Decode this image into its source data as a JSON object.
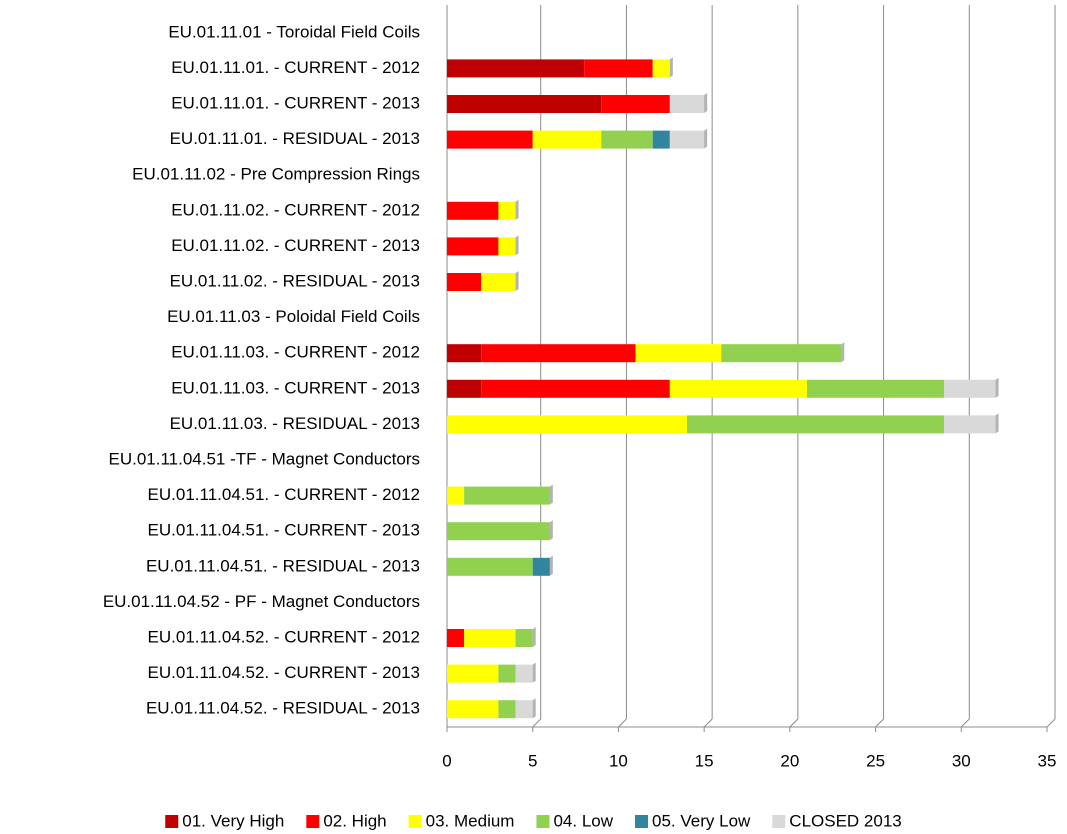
{
  "chart_data": {
    "type": "stacked-barh",
    "categories": [
      "EU.01.11.01 - Toroidal Field Coils",
      "EU.01.11.01. - CURRENT - 2012",
      "EU.01.11.01. - CURRENT - 2013",
      "EU.01.11.01. - RESIDUAL - 2013",
      "EU.01.11.02 - Pre Compression Rings",
      "EU.01.11.02. - CURRENT - 2012",
      "EU.01.11.02. - CURRENT - 2013",
      "EU.01.11.02. - RESIDUAL - 2013",
      "EU.01.11.03 - Poloidal Field Coils",
      "EU.01.11.03. - CURRENT - 2012",
      "EU.01.11.03. - CURRENT - 2013",
      "EU.01.11.03. - RESIDUAL - 2013",
      "EU.01.11.04.51 -TF - Magnet Conductors",
      "EU.01.11.04.51. - CURRENT - 2012",
      "EU.01.11.04.51. - CURRENT - 2013",
      "EU.01.11.04.51. - RESIDUAL - 2013",
      "EU.01.11.04.52 - PF - Magnet Conductors",
      "EU.01.11.04.52. - CURRENT - 2012",
      "EU.01.11.04.52. - CURRENT - 2013",
      "EU.01.11.04.52. - RESIDUAL - 2013"
    ],
    "series": [
      {
        "name": "01. Very High",
        "color": "#c00000",
        "values": [
          null,
          8,
          9,
          0,
          null,
          0,
          0,
          0,
          null,
          2,
          2,
          0,
          null,
          0,
          0,
          0,
          null,
          0,
          0,
          0
        ]
      },
      {
        "name": "02. High",
        "color": "#ff0000",
        "values": [
          null,
          4,
          4,
          5,
          null,
          3,
          3,
          2,
          null,
          9,
          11,
          0,
          null,
          0,
          0,
          0,
          null,
          1,
          0,
          0
        ]
      },
      {
        "name": "03. Medium",
        "color": "#ffff00",
        "values": [
          null,
          1,
          0,
          4,
          null,
          1,
          1,
          2,
          null,
          5,
          8,
          14,
          null,
          1,
          0,
          0,
          null,
          3,
          3,
          3
        ]
      },
      {
        "name": "04. Low",
        "color": "#92d050",
        "values": [
          null,
          0,
          0,
          3,
          null,
          0,
          0,
          0,
          null,
          7,
          8,
          15,
          null,
          5,
          6,
          5,
          null,
          1,
          1,
          1
        ]
      },
      {
        "name": "05. Very Low",
        "color": "#31859c",
        "values": [
          null,
          0,
          0,
          1,
          null,
          0,
          0,
          0,
          null,
          0,
          0,
          0,
          null,
          0,
          0,
          1,
          null,
          0,
          0,
          0
        ]
      },
      {
        "name": "CLOSED 2013",
        "color": "#d9d9d9",
        "values": [
          null,
          0,
          2,
          2,
          null,
          0,
          0,
          0,
          null,
          0,
          3,
          3,
          null,
          0,
          0,
          0,
          null,
          0,
          1,
          1
        ]
      }
    ],
    "xlim": [
      0,
      35
    ],
    "xticks": [
      0,
      5,
      10,
      15,
      20,
      25,
      30,
      35
    ],
    "grid": true,
    "legend": "bottom"
  }
}
